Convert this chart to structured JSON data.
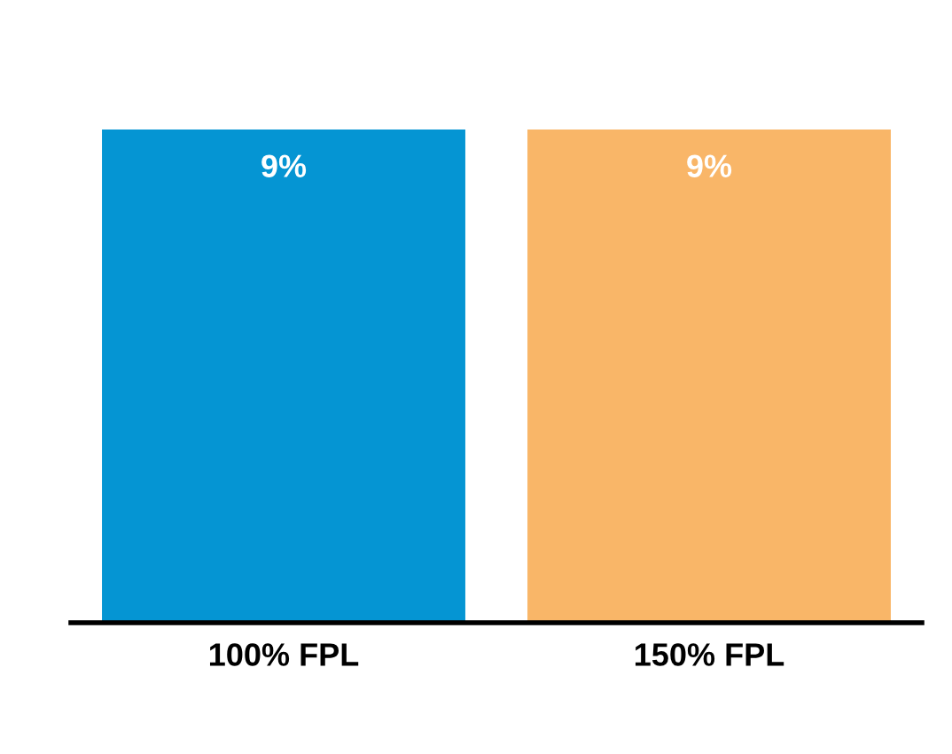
{
  "chart_data": {
    "type": "bar",
    "categories": [
      "100% FPL",
      "150% FPL"
    ],
    "values": [
      9,
      9
    ],
    "colors": [
      "#0595d3",
      "#f9b668"
    ],
    "value_labels": [
      "9%",
      "9%"
    ]
  }
}
